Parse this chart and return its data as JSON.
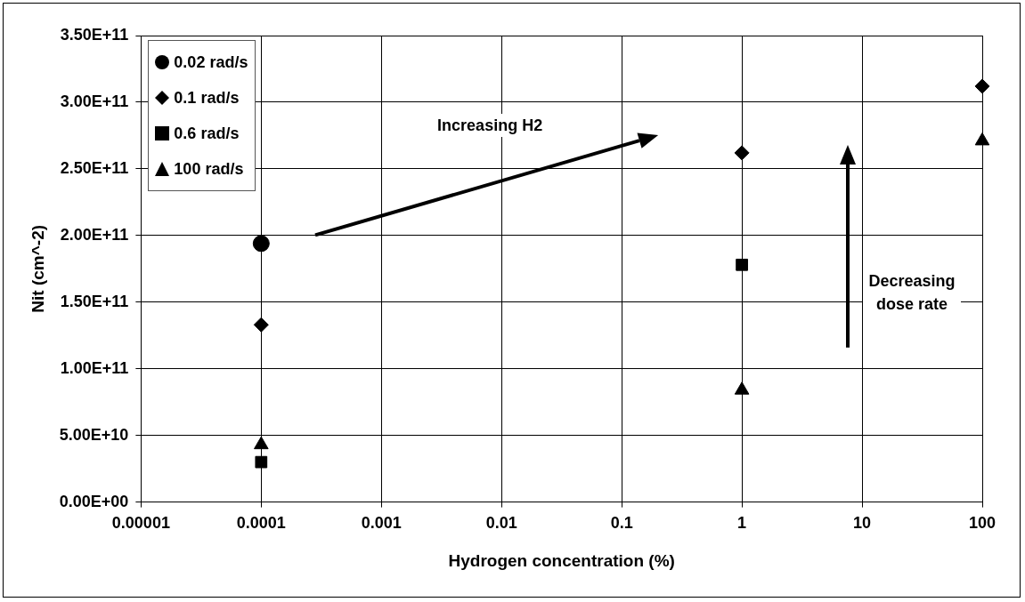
{
  "chart_data": {
    "type": "scatter",
    "xlabel": "Hydrogen concentration (%)",
    "ylabel": "Nit (cm^-2)",
    "log": "x",
    "grid": true,
    "legend": "top left",
    "xlim": [
      1e-05,
      100
    ],
    "xticks": [
      {
        "value": 1e-05,
        "label": "0.00001"
      },
      0.0001,
      0.001,
      0.01,
      0.1,
      1,
      10,
      100
    ],
    "ylim": [
      0,
      350000000000
    ],
    "yticks": [
      {
        "value": 0,
        "label": "0.00E+00"
      },
      {
        "value": 50000000000,
        "label": "5.00E+10"
      },
      {
        "value": 100000000000,
        "label": "1.00E+11"
      },
      {
        "value": 150000000000,
        "label": "1.50E+11"
      },
      {
        "value": 200000000000,
        "label": "2.00E+11"
      },
      {
        "value": 250000000000,
        "label": "2.50E+11"
      },
      {
        "value": 300000000000,
        "label": "3.00E+11"
      },
      {
        "value": 350000000000,
        "label": "3.50E+11"
      }
    ],
    "annotations": [
      "Increasing H2",
      "Decreasing dose rate"
    ],
    "series": [
      {
        "name": "0.02 rad/s",
        "color": "#000000",
        "marker": "circle",
        "x": [
          0.0001
        ],
        "values": [
          194000000000
        ]
      },
      {
        "name": "0.1 rad/s",
        "color": "#000000",
        "marker": "diamond",
        "x": [
          0.0001,
          1,
          100
        ],
        "values": [
          133000000000,
          262000000000,
          312000000000
        ]
      },
      {
        "name": "0.6 rad/s",
        "color": "#000000",
        "marker": "square",
        "x": [
          0.0001,
          1
        ],
        "values": [
          30000000000,
          178000000000
        ]
      },
      {
        "name": "100 rad/s",
        "color": "#000000",
        "marker": "triangle",
        "x": [
          0.0001,
          1,
          100
        ],
        "values": [
          43000000000,
          84000000000,
          271000000000
        ]
      }
    ]
  }
}
